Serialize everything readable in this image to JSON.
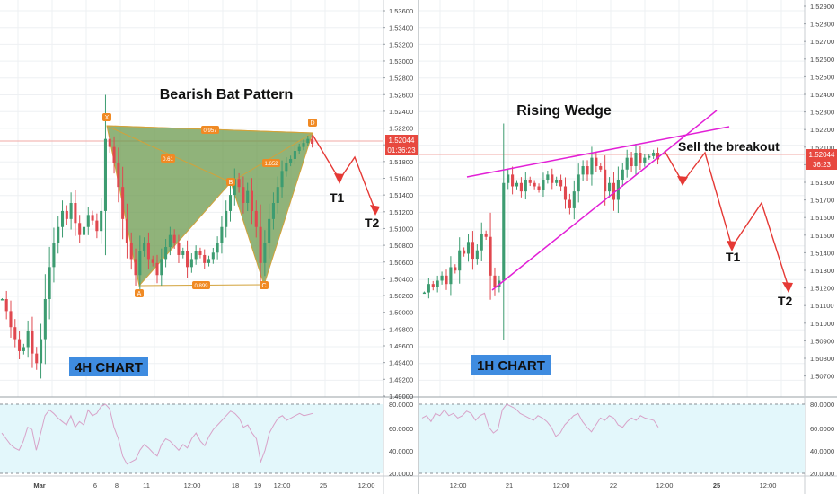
{
  "colors": {
    "bull": "#3d9c71",
    "bear": "#e0484f",
    "bat_fill": "#6b9a4e",
    "bat_edge": "#d2a23a",
    "wedge": "#e21fd6",
    "arrow": "#e53935",
    "rsi_bg": "#e3f7fb",
    "rsi_line": "#d8a2c8",
    "price_tag": "#e7483f",
    "label_bg": "#3f8ce0",
    "grid": "#eef0f3"
  },
  "left": {
    "title": "Bearish Bat Pattern",
    "chart_label": "4H CHART",
    "price_axis": [
      "1.53600",
      "1.53400",
      "1.53200",
      "1.53000",
      "1.52800",
      "1.52600",
      "1.52400",
      "1.52200",
      "1.52000",
      "1.51800",
      "1.51600",
      "1.51400",
      "1.51200",
      "1.51000",
      "1.50800",
      "1.50600",
      "1.50400",
      "1.50200",
      "1.50000",
      "1.49800",
      "1.49600",
      "1.49400",
      "1.49200",
      "1.49000"
    ],
    "price_tag": "1.52044",
    "countdown": "01:36:23",
    "time_axis": [
      "Mar",
      "6",
      "8",
      "11",
      "12:00",
      "18",
      "19",
      "12:00",
      "25",
      "12:00"
    ],
    "rsi_axis": [
      "80.0000",
      "60.0000",
      "40.0000",
      "20.0000"
    ],
    "points": [
      "X",
      "A",
      "B",
      "C",
      "D"
    ],
    "ratios": [
      "0.957",
      "0.61",
      "1.652",
      "0.899"
    ],
    "targets": [
      "T1",
      "T2"
    ]
  },
  "right": {
    "title": "Rising Wedge",
    "chart_label": "1H CHART",
    "annotation": "Sell the breakout",
    "price_axis": [
      "1.52900",
      "1.52800",
      "1.52700",
      "1.52600",
      "1.52500",
      "1.52400",
      "1.52300",
      "1.52200",
      "1.52100",
      "1.51900",
      "1.51800",
      "1.51700",
      "1.51600",
      "1.51500",
      "1.51400",
      "1.51300",
      "1.51200",
      "1.51100",
      "1.51000",
      "1.50900",
      "1.50800",
      "1.50700"
    ],
    "price_tag": "1.52044",
    "countdown": "36:23",
    "time_axis": [
      "12:00",
      "21",
      "12:00",
      "22",
      "12:00",
      "25",
      "12:00"
    ],
    "rsi_axis": [
      "80.0000",
      "60.0000",
      "40.0000",
      "20.0000"
    ],
    "targets": [
      "T1",
      "T2"
    ]
  },
  "chart_data": [
    {
      "type": "candlestick",
      "title": "Bearish Bat Pattern",
      "timeframe": "4H CHART",
      "ylim": [
        1.489,
        1.537
      ],
      "harmonic_points": [
        {
          "name": "X",
          "price": 1.522
        },
        {
          "name": "A",
          "price": 1.503
        },
        {
          "name": "B",
          "price": 1.5163
        },
        {
          "name": "C",
          "price": 1.5042
        },
        {
          "name": "D",
          "price": 1.5215
        }
      ],
      "ratios": [
        {
          "leg": "XB",
          "value": 0.957
        },
        {
          "leg": "XA-AB",
          "value": 0.61
        },
        {
          "leg": "BC-CD",
          "value": 1.652
        },
        {
          "leg": "AC",
          "value": 0.899
        }
      ],
      "targets": [
        {
          "name": "T1",
          "price": 1.518
        },
        {
          "name": "T2",
          "price": 1.513
        }
      ],
      "close_series": [
        1.501,
        1.4995,
        1.4975,
        1.496,
        1.4945,
        1.495,
        1.497,
        1.4942,
        1.493,
        1.496,
        1.501,
        1.505,
        1.508,
        1.51,
        1.512,
        1.511,
        1.513,
        1.5105,
        1.509,
        1.51,
        1.5115,
        1.5108,
        1.5095,
        1.512,
        1.521,
        1.52,
        1.518,
        1.515,
        1.511,
        1.508,
        1.506,
        1.504,
        1.507,
        1.508,
        1.506,
        1.5055,
        1.504,
        1.506,
        1.5075,
        1.509,
        1.508,
        1.5065,
        1.507,
        1.505,
        1.506,
        1.507,
        1.5065,
        1.5055,
        1.506,
        1.5068,
        1.508,
        1.51,
        1.512,
        1.514,
        1.516,
        1.515,
        1.513,
        1.5145,
        1.512,
        1.51,
        1.5055,
        1.508,
        1.511,
        1.513,
        1.515,
        1.517,
        1.518,
        1.5185,
        1.5195,
        1.52,
        1.5205,
        1.521,
        1.5204
      ],
      "rsi_series": [
        55,
        50,
        45,
        42,
        40,
        48,
        60,
        58,
        40,
        55,
        70,
        75,
        72,
        68,
        65,
        62,
        70,
        60,
        65,
        62,
        75,
        70,
        72,
        78,
        80,
        76,
        60,
        50,
        35,
        28,
        30,
        32,
        40,
        45,
        42,
        38,
        35,
        45,
        50,
        48,
        44,
        40,
        45,
        42,
        50,
        55,
        48,
        44,
        52,
        58,
        62,
        66,
        70,
        74,
        72,
        68,
        60,
        62,
        55,
        50,
        30,
        40,
        55,
        62,
        68,
        70,
        66,
        68,
        70,
        72,
        70,
        71,
        72
      ]
    },
    {
      "type": "candlestick",
      "title": "Rising Wedge",
      "timeframe": "1H CHART",
      "annotation": "Sell the breakout",
      "ylim": [
        1.5065,
        1.5295
      ],
      "targets": [
        {
          "name": "T1",
          "price": 1.515
        },
        {
          "name": "T2",
          "price": 1.5135
        }
      ],
      "close_series": [
        1.5125,
        1.513,
        1.5128,
        1.5132,
        1.5135,
        1.513,
        1.514,
        1.5138,
        1.515,
        1.5148,
        1.5155,
        1.5145,
        1.515,
        1.516,
        1.5158,
        1.5135,
        1.5128,
        1.5132,
        1.519,
        1.5195,
        1.5188,
        1.519,
        1.5185,
        1.5192,
        1.519,
        1.5188,
        1.5186,
        1.5192,
        1.5195,
        1.519,
        1.5192,
        1.5188,
        1.518,
        1.5175,
        1.5185,
        1.5195,
        1.52,
        1.5195,
        1.5205,
        1.52,
        1.5198,
        1.5185,
        1.519,
        1.518,
        1.5192,
        1.5198,
        1.5205,
        1.52,
        1.5208,
        1.5202,
        1.5205,
        1.5206,
        1.5208,
        1.5204
      ],
      "rsi_series": [
        68,
        70,
        65,
        72,
        70,
        75,
        70,
        72,
        68,
        70,
        74,
        72,
        66,
        70,
        72,
        60,
        55,
        58,
        75,
        80,
        78,
        76,
        72,
        70,
        68,
        66,
        70,
        68,
        65,
        60,
        52,
        55,
        62,
        66,
        70,
        72,
        65,
        60,
        56,
        62,
        68,
        66,
        70,
        68,
        62,
        60,
        65,
        68,
        66,
        70,
        68,
        67,
        66,
        60
      ]
    }
  ]
}
